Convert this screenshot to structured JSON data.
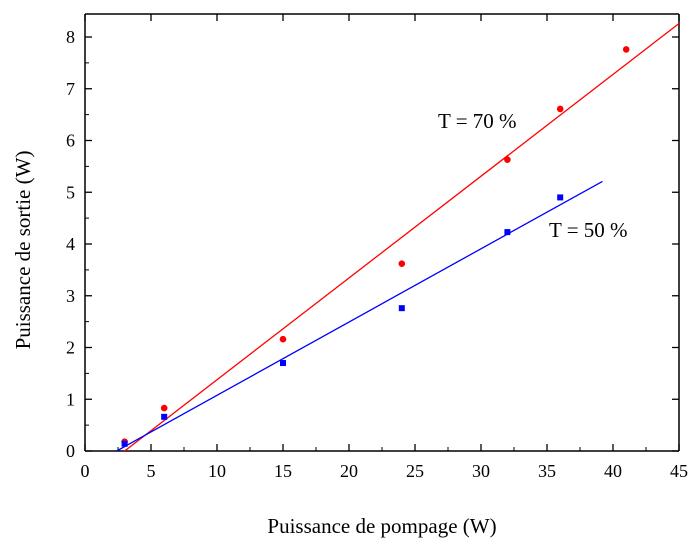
{
  "chart_data": {
    "type": "scatter",
    "xlabel": "Puissance de pompage (W)",
    "ylabel": "Puissance de sortie (W)",
    "xlim": [
      0,
      45
    ],
    "ylim": [
      0,
      8.5
    ],
    "x_ticks": [
      0,
      5,
      10,
      15,
      20,
      25,
      30,
      35,
      40,
      45
    ],
    "y_ticks": [
      0,
      1,
      2,
      3,
      4,
      5,
      6,
      7,
      8
    ],
    "grid": false,
    "legend": "none",
    "series": [
      {
        "name": "T = 70 %",
        "color": "#ff0000",
        "marker": "circle",
        "x": [
          3,
          6,
          15,
          24,
          32,
          36,
          41
        ],
        "y": [
          0.18,
          0.83,
          2.16,
          3.62,
          5.63,
          6.61,
          7.76
        ],
        "fit_line": {
          "x": [
            3.0,
            45
          ],
          "y": [
            0.0,
            8.26
          ]
        }
      },
      {
        "name": "T = 50 %",
        "color": "#0000ff",
        "marker": "square",
        "x": [
          3,
          6,
          15,
          24,
          32,
          36
        ],
        "y": [
          0.14,
          0.66,
          1.7,
          2.76,
          4.23,
          4.9
        ],
        "fit_line": {
          "x": [
            2.4,
            39.2
          ],
          "y": [
            0.0,
            5.21
          ]
        }
      }
    ]
  }
}
